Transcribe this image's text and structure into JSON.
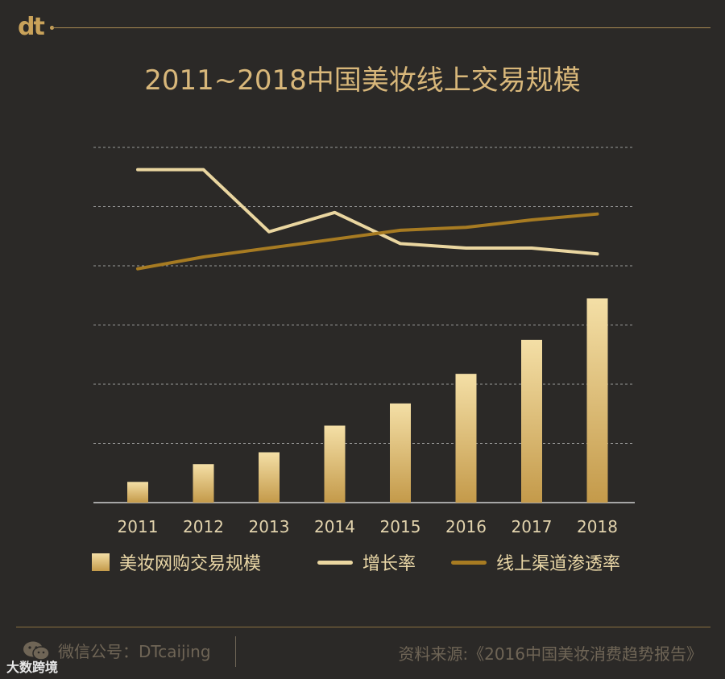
{
  "brand": {
    "logo_text": "dt"
  },
  "chart_data": {
    "type": "bar+line",
    "title": "2011~2018中国美妆线上交易规模",
    "categories": [
      "2011",
      "2012",
      "2013",
      "2014",
      "2015",
      "2016",
      "2017",
      "2018"
    ],
    "series": [
      {
        "name": "美妆网购交易规模",
        "kind": "bar",
        "values": [
          14,
          26,
          34,
          52,
          67,
          87,
          110,
          138
        ]
      },
      {
        "name": "增长率",
        "kind": "line",
        "values": [
          225,
          225,
          183,
          196,
          175,
          172,
          172,
          168
        ]
      },
      {
        "name": "线上渠道渗透率",
        "kind": "line",
        "values": [
          158,
          166,
          172,
          178,
          184,
          186,
          191,
          195
        ]
      }
    ],
    "ylim": [
      0,
      240
    ],
    "gridlines": 6,
    "colors": {
      "bar_top": "#f4dfa6",
      "bar_bottom": "#c49a4a",
      "growth": "#ead6a0",
      "penetration": "#a77b22"
    }
  },
  "legend": {
    "bar_label": "美妆网购交易规模",
    "growth_label": "增长率",
    "penetration_label": "线上渠道渗透率"
  },
  "footer": {
    "wechat": "微信公号：DTcaijing",
    "source": "资料来源:《2016中国美妆消费趋势报告》",
    "watermark": "大数跨境"
  }
}
